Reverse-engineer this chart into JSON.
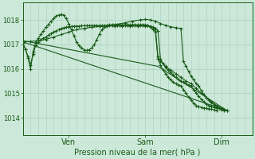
{
  "title": "Pression niveau de la mer( hPa )",
  "ylabel_ticks": [
    1014,
    1015,
    1016,
    1017,
    1018
  ],
  "ylim": [
    1013.3,
    1018.7
  ],
  "xlim": [
    0,
    90
  ],
  "xtick_positions": [
    18,
    48,
    78
  ],
  "xtick_labels": [
    "Ven",
    "Sam",
    "Dim"
  ],
  "bg_color": "#cce8d8",
  "grid_color": "#aacfbe",
  "line_color": "#1a5c1a",
  "line_main": [
    [
      0,
      1017.05
    ],
    [
      1,
      1016.8
    ],
    [
      2,
      1016.5
    ],
    [
      3,
      1016.15
    ],
    [
      4,
      1016.6
    ],
    [
      5,
      1016.95
    ],
    [
      6,
      1017.1
    ],
    [
      7,
      1017.2
    ],
    [
      8,
      1017.25
    ],
    [
      9,
      1017.3
    ],
    [
      10,
      1017.38
    ],
    [
      11,
      1017.45
    ],
    [
      12,
      1017.5
    ],
    [
      13,
      1017.55
    ],
    [
      14,
      1017.6
    ],
    [
      15,
      1017.65
    ],
    [
      16,
      1017.68
    ],
    [
      17,
      1017.7
    ],
    [
      18,
      1017.72
    ],
    [
      19,
      1017.73
    ],
    [
      20,
      1017.74
    ],
    [
      21,
      1017.75
    ],
    [
      22,
      1017.75
    ],
    [
      23,
      1017.76
    ],
    [
      24,
      1017.76
    ],
    [
      25,
      1017.77
    ],
    [
      26,
      1017.77
    ],
    [
      27,
      1017.77
    ],
    [
      28,
      1017.77
    ],
    [
      29,
      1017.77
    ],
    [
      30,
      1017.77
    ],
    [
      31,
      1017.77
    ],
    [
      32,
      1017.77
    ],
    [
      33,
      1017.77
    ],
    [
      34,
      1017.77
    ],
    [
      35,
      1017.77
    ],
    [
      36,
      1017.77
    ],
    [
      37,
      1017.77
    ],
    [
      38,
      1017.77
    ],
    [
      39,
      1017.77
    ],
    [
      40,
      1017.77
    ],
    [
      41,
      1017.77
    ],
    [
      42,
      1017.77
    ],
    [
      43,
      1017.77
    ],
    [
      44,
      1017.77
    ],
    [
      45,
      1017.77
    ],
    [
      46,
      1017.77
    ],
    [
      47,
      1017.77
    ],
    [
      48,
      1017.77
    ],
    [
      49,
      1017.77
    ],
    [
      50,
      1017.75
    ],
    [
      51,
      1017.7
    ],
    [
      52,
      1017.65
    ],
    [
      53,
      1017.55
    ],
    [
      54,
      1016.4
    ],
    [
      55,
      1016.2
    ],
    [
      56,
      1016.05
    ],
    [
      57,
      1015.95
    ],
    [
      58,
      1015.85
    ],
    [
      59,
      1015.75
    ],
    [
      60,
      1015.65
    ],
    [
      61,
      1015.55
    ],
    [
      62,
      1015.5
    ],
    [
      63,
      1015.45
    ],
    [
      64,
      1015.4
    ],
    [
      65,
      1015.35
    ],
    [
      66,
      1015.3
    ],
    [
      67,
      1015.15
    ],
    [
      68,
      1015.0
    ],
    [
      69,
      1014.88
    ],
    [
      70,
      1014.75
    ],
    [
      71,
      1014.65
    ],
    [
      72,
      1014.55
    ],
    [
      73,
      1014.5
    ],
    [
      74,
      1014.45
    ],
    [
      75,
      1014.42
    ],
    [
      76,
      1014.4
    ],
    [
      77,
      1014.38
    ],
    [
      78,
      1014.35
    ],
    [
      79,
      1014.33
    ],
    [
      80,
      1014.3
    ]
  ],
  "line_peaked": [
    [
      0,
      1017.05
    ],
    [
      1,
      1016.8
    ],
    [
      2,
      1016.45
    ],
    [
      3,
      1016.0
    ],
    [
      4,
      1016.7
    ],
    [
      5,
      1017.1
    ],
    [
      6,
      1017.25
    ],
    [
      7,
      1017.4
    ],
    [
      8,
      1017.55
    ],
    [
      9,
      1017.7
    ],
    [
      10,
      1017.82
    ],
    [
      11,
      1017.95
    ],
    [
      12,
      1018.05
    ],
    [
      13,
      1018.15
    ],
    [
      14,
      1018.2
    ],
    [
      15,
      1018.22
    ],
    [
      16,
      1018.2
    ],
    [
      17,
      1018.05
    ],
    [
      18,
      1017.85
    ],
    [
      19,
      1017.6
    ],
    [
      20,
      1017.35
    ],
    [
      21,
      1017.1
    ],
    [
      22,
      1016.95
    ],
    [
      23,
      1016.85
    ],
    [
      24,
      1016.78
    ],
    [
      25,
      1016.75
    ],
    [
      26,
      1016.78
    ],
    [
      27,
      1016.85
    ],
    [
      28,
      1017.0
    ],
    [
      29,
      1017.2
    ],
    [
      30,
      1017.42
    ],
    [
      31,
      1017.6
    ],
    [
      32,
      1017.72
    ],
    [
      33,
      1017.78
    ],
    [
      34,
      1017.8
    ],
    [
      35,
      1017.8
    ],
    [
      36,
      1017.8
    ],
    [
      37,
      1017.8
    ],
    [
      38,
      1017.8
    ],
    [
      39,
      1017.8
    ],
    [
      40,
      1017.8
    ],
    [
      41,
      1017.8
    ],
    [
      42,
      1017.8
    ],
    [
      43,
      1017.8
    ],
    [
      44,
      1017.8
    ],
    [
      45,
      1017.8
    ],
    [
      46,
      1017.8
    ],
    [
      47,
      1017.8
    ],
    [
      48,
      1017.8
    ],
    [
      49,
      1017.78
    ],
    [
      50,
      1017.72
    ],
    [
      51,
      1017.62
    ],
    [
      52,
      1017.5
    ],
    [
      53,
      1016.4
    ],
    [
      54,
      1016.15
    ],
    [
      55,
      1015.95
    ],
    [
      56,
      1015.8
    ],
    [
      57,
      1015.65
    ],
    [
      58,
      1015.55
    ],
    [
      59,
      1015.45
    ],
    [
      60,
      1015.4
    ],
    [
      61,
      1015.35
    ],
    [
      62,
      1015.3
    ],
    [
      63,
      1015.15
    ],
    [
      64,
      1015.0
    ],
    [
      65,
      1014.85
    ],
    [
      66,
      1014.72
    ],
    [
      67,
      1014.6
    ],
    [
      68,
      1014.5
    ],
    [
      69,
      1014.45
    ],
    [
      70,
      1014.42
    ],
    [
      71,
      1014.4
    ],
    [
      72,
      1014.38
    ],
    [
      73,
      1014.36
    ],
    [
      74,
      1014.35
    ],
    [
      75,
      1014.32
    ],
    [
      76,
      1014.3
    ]
  ],
  "line_mid_markers": [
    [
      0,
      1017.1
    ],
    [
      3,
      1017.12
    ],
    [
      6,
      1017.15
    ],
    [
      9,
      1017.2
    ],
    [
      12,
      1017.3
    ],
    [
      15,
      1017.4
    ],
    [
      18,
      1017.5
    ],
    [
      21,
      1017.6
    ],
    [
      24,
      1017.65
    ],
    [
      27,
      1017.7
    ],
    [
      30,
      1017.73
    ],
    [
      33,
      1017.75
    ],
    [
      36,
      1017.75
    ],
    [
      39,
      1017.75
    ],
    [
      42,
      1017.75
    ],
    [
      45,
      1017.75
    ],
    [
      48,
      1017.75
    ],
    [
      50,
      1017.72
    ],
    [
      52,
      1017.65
    ],
    [
      53,
      1016.5
    ],
    [
      54,
      1016.3
    ],
    [
      56,
      1016.1
    ],
    [
      58,
      1015.95
    ],
    [
      60,
      1015.8
    ],
    [
      62,
      1015.65
    ],
    [
      64,
      1015.5
    ],
    [
      66,
      1015.4
    ],
    [
      68,
      1015.2
    ],
    [
      70,
      1015.0
    ],
    [
      72,
      1014.82
    ],
    [
      74,
      1014.65
    ],
    [
      76,
      1014.5
    ],
    [
      78,
      1014.38
    ],
    [
      80,
      1014.3
    ]
  ],
  "line_diagonal1": [
    [
      0,
      1017.1
    ],
    [
      80,
      1014.3
    ]
  ],
  "line_diagonal2": [
    [
      0,
      1017.15
    ],
    [
      53,
      1016.1
    ],
    [
      80,
      1014.3
    ]
  ],
  "line_sam_peak": [
    [
      30,
      1017.73
    ],
    [
      36,
      1017.8
    ],
    [
      40,
      1017.88
    ],
    [
      43,
      1017.95
    ],
    [
      46,
      1018.0
    ],
    [
      48,
      1018.02
    ],
    [
      50,
      1018.0
    ],
    [
      52,
      1017.95
    ],
    [
      54,
      1017.85
    ],
    [
      56,
      1017.78
    ],
    [
      58,
      1017.72
    ],
    [
      60,
      1017.68
    ],
    [
      62,
      1017.65
    ],
    [
      63,
      1016.3
    ],
    [
      64,
      1016.1
    ],
    [
      65,
      1015.9
    ],
    [
      66,
      1015.7
    ],
    [
      67,
      1015.55
    ],
    [
      68,
      1015.4
    ],
    [
      69,
      1015.3
    ],
    [
      70,
      1015.1
    ],
    [
      71,
      1014.95
    ],
    [
      72,
      1014.82
    ],
    [
      73,
      1014.72
    ],
    [
      74,
      1014.62
    ],
    [
      75,
      1014.52
    ],
    [
      76,
      1014.45
    ],
    [
      77,
      1014.38
    ],
    [
      78,
      1014.33
    ],
    [
      79,
      1014.3
    ]
  ]
}
